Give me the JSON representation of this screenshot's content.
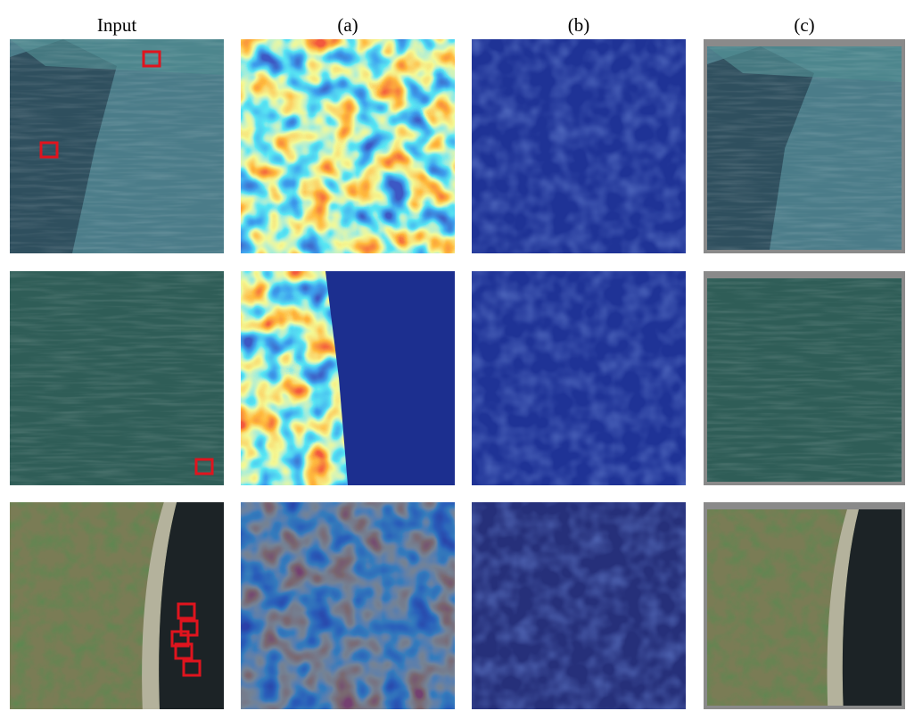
{
  "header": {
    "columns": [
      "Input",
      "(a)",
      "(b)",
      "(c)"
    ]
  }
}
